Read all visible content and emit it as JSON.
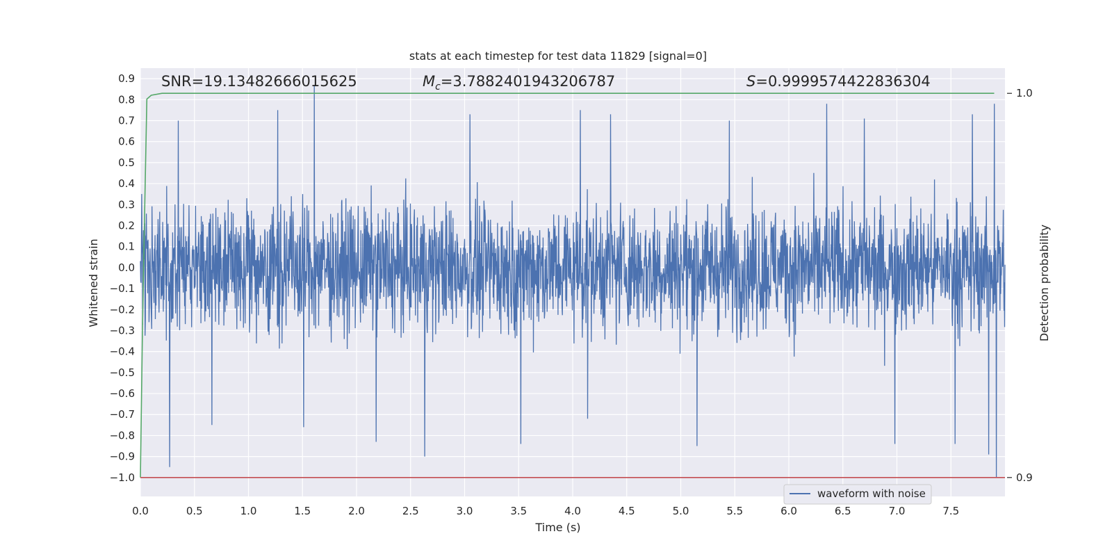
{
  "chart_data": {
    "type": "line",
    "title": "stats at each timestep for test data 11829 [signal=0]",
    "xlabel": "Time (s)",
    "ylabel": "Whitened strain",
    "y2label": "Detection probability",
    "xlim": [
      0,
      8.0
    ],
    "ylim": [
      -1.09,
      0.95
    ],
    "y2lim": [
      0.9,
      1.0
    ],
    "x_ticks": [
      0.0,
      0.5,
      1.0,
      1.5,
      2.0,
      2.5,
      3.0,
      3.5,
      4.0,
      4.5,
      5.0,
      5.5,
      6.0,
      6.5,
      7.0,
      7.5
    ],
    "x_tick_labels": [
      "0.0",
      "0.5",
      "1.0",
      "1.5",
      "2.0",
      "2.5",
      "3.0",
      "3.5",
      "4.0",
      "4.5",
      "5.0",
      "5.5",
      "6.0",
      "6.5",
      "7.0",
      "7.5"
    ],
    "y_ticks": [
      0.9,
      0.8,
      0.7,
      0.6,
      0.5,
      0.4,
      0.3,
      0.2,
      0.1,
      0.0,
      -0.1,
      -0.2,
      -0.3,
      -0.4,
      -0.5,
      -0.6,
      -0.7,
      -0.8,
      -0.9,
      -1.0
    ],
    "y_tick_labels": [
      "0.9",
      "0.8",
      "0.7",
      "0.6",
      "0.5",
      "0.4",
      "0.3",
      "0.2",
      "0.1",
      "0.0",
      "−0.1",
      "−0.2",
      "−0.3",
      "−0.4",
      "−0.5",
      "−0.6",
      "−0.7",
      "−0.8",
      "−0.9",
      "−1.0"
    ],
    "y2_ticks": [
      1.0,
      0.9
    ],
    "y2_tick_labels": [
      "1.0",
      "0.9"
    ],
    "grid": true,
    "background": "#eaeaf2",
    "legend_position": "lower-right",
    "annotations": {
      "snr": "SNR=19.13482666015625",
      "mc_symbol": "M",
      "mc_sub": "c",
      "mc_value": "=3.7882401943206787",
      "s_symbol": "S",
      "s_value": "=0.9999574422836304"
    },
    "series": [
      {
        "name": "waveform with noise",
        "axis": "left",
        "color": "#4c72b0",
        "kind": "noise",
        "x_range": [
          0,
          8.0
        ],
        "typical_envelope": [
          -0.45,
          0.45
        ],
        "extreme_peaks": [
          {
            "x": 1.61,
            "y": 0.87
          },
          {
            "x": 1.27,
            "y": 0.75
          },
          {
            "x": 4.07,
            "y": 0.75
          },
          {
            "x": 6.35,
            "y": 0.78
          },
          {
            "x": 7.9,
            "y": 0.78
          },
          {
            "x": 7.7,
            "y": 0.73
          },
          {
            "x": 6.7,
            "y": 0.71
          },
          {
            "x": 3.05,
            "y": 0.73
          },
          {
            "x": 4.35,
            "y": 0.73
          },
          {
            "x": 0.35,
            "y": 0.7
          },
          {
            "x": 5.45,
            "y": 0.7
          }
        ],
        "extreme_troughs": [
          {
            "x": 0.27,
            "y": -0.95
          },
          {
            "x": 2.63,
            "y": -0.9
          },
          {
            "x": 5.15,
            "y": -0.85
          },
          {
            "x": 6.98,
            "y": -0.84
          },
          {
            "x": 7.54,
            "y": -0.84
          },
          {
            "x": 3.52,
            "y": -0.84
          },
          {
            "x": 7.85,
            "y": -0.89
          },
          {
            "x": 7.92,
            "y": -1.0
          },
          {
            "x": 2.18,
            "y": -0.83
          },
          {
            "x": 1.51,
            "y": -0.76
          },
          {
            "x": 0.66,
            "y": -0.75
          },
          {
            "x": 4.14,
            "y": -0.72
          }
        ]
      },
      {
        "name": "",
        "axis": "right",
        "color": "#55a868",
        "points": [
          [
            0.0,
            0.9
          ],
          [
            0.02,
            0.94
          ],
          [
            0.04,
            0.97
          ],
          [
            0.06,
            0.9985
          ],
          [
            0.1,
            0.9995
          ],
          [
            0.2,
            1.0
          ],
          [
            7.9,
            1.0
          ]
        ]
      },
      {
        "name": "",
        "axis": "right",
        "color": "#c44e52",
        "points": [
          [
            0.0,
            0.9
          ],
          [
            8.0,
            0.9
          ]
        ]
      }
    ]
  }
}
